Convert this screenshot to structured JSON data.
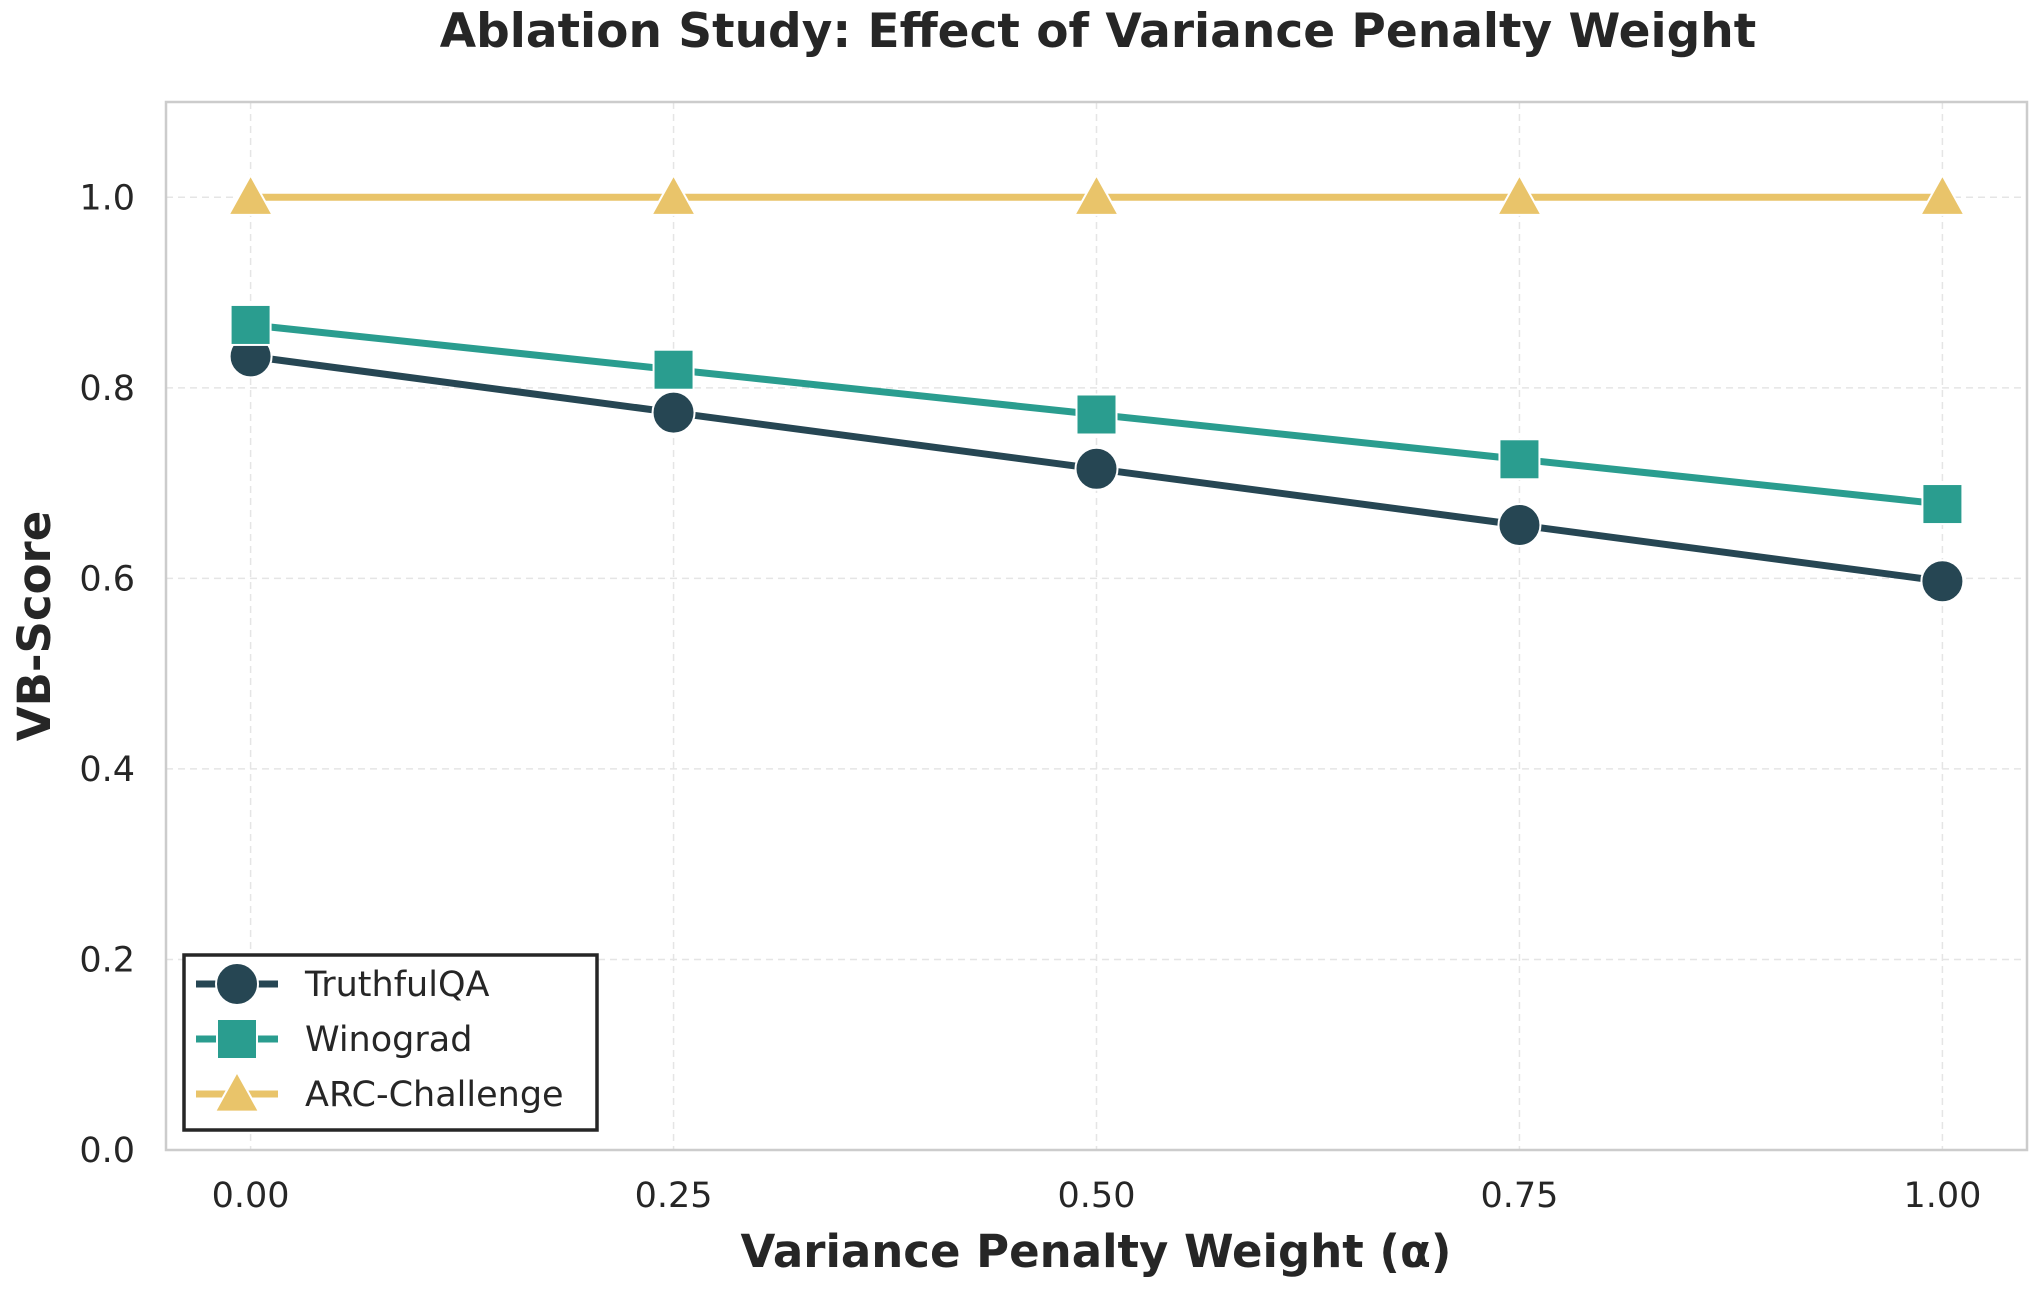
{
  "chart_data": {
    "type": "line",
    "title": "Ablation Study: Effect of Variance Penalty Weight",
    "xlabel": "Variance Penalty Weight (α)",
    "ylabel": "VB-Score",
    "x": [
      0.0,
      0.25,
      0.5,
      0.75,
      1.0
    ],
    "xticks": [
      "0.00",
      "0.25",
      "0.50",
      "0.75",
      "1.00"
    ],
    "yticks": [
      "0.0",
      "0.2",
      "0.4",
      "0.6",
      "0.8",
      "1.0"
    ],
    "xlim": [
      -0.05,
      1.05
    ],
    "ylim": [
      0.0,
      1.1
    ],
    "grid": true,
    "legend_position": "lower-left",
    "series": [
      {
        "name": "TruthfulQA",
        "values": [
          0.833,
          0.774,
          0.715,
          0.656,
          0.597
        ],
        "color": "#264653",
        "marker": "circle"
      },
      {
        "name": "Winograd",
        "values": [
          0.866,
          0.819,
          0.772,
          0.725,
          0.678
        ],
        "color": "#2a9d8f",
        "marker": "square"
      },
      {
        "name": "ARC-Challenge",
        "values": [
          1.0,
          1.0,
          1.0,
          1.0,
          1.0
        ],
        "color": "#e9c46a",
        "marker": "triangle"
      }
    ]
  }
}
